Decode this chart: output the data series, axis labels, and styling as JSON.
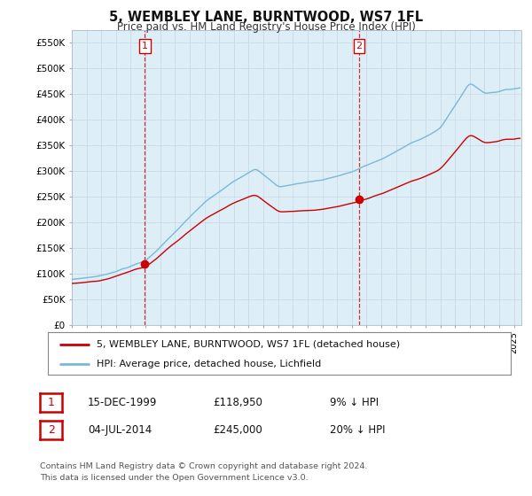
{
  "title": "5, WEMBLEY LANE, BURNTWOOD, WS7 1FL",
  "subtitle": "Price paid vs. HM Land Registry's House Price Index (HPI)",
  "ylim": [
    0,
    575000
  ],
  "xlim_start": 1995.0,
  "xlim_end": 2025.5,
  "hpi_color": "#7ab8d9",
  "price_color": "#cc0000",
  "fill_color": "#ddeef7",
  "sale1_date": 1999.96,
  "sale1_price": 118950,
  "sale2_date": 2014.5,
  "sale2_price": 245000,
  "legend_line1": "5, WEMBLEY LANE, BURNTWOOD, WS7 1FL (detached house)",
  "legend_line2": "HPI: Average price, detached house, Lichfield",
  "table_row1_num": "1",
  "table_row1_date": "15-DEC-1999",
  "table_row1_price": "£118,950",
  "table_row1_hpi": "9% ↓ HPI",
  "table_row2_num": "2",
  "table_row2_date": "04-JUL-2014",
  "table_row2_price": "£245,000",
  "table_row2_hpi": "20% ↓ HPI",
  "footer": "Contains HM Land Registry data © Crown copyright and database right 2024.\nThis data is licensed under the Open Government Licence v3.0.",
  "background_color": "#ffffff",
  "grid_color": "#c8d8e8"
}
